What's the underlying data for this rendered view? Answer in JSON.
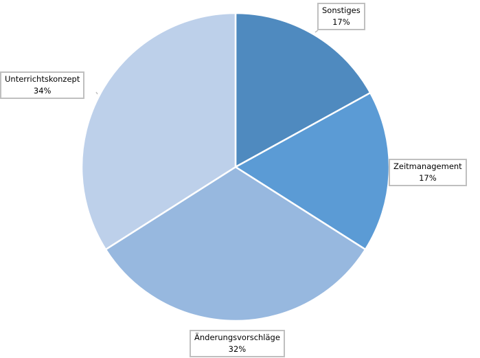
{
  "chart_data": {
    "type": "pie",
    "start": "top",
    "direction": "clockwise",
    "slices": [
      {
        "label": "Sonstiges",
        "value": 17,
        "value_label": "17%",
        "color": "#4f8abf"
      },
      {
        "label": "Zeitmanagement",
        "value": 17,
        "value_label": "17%",
        "color": "#5b9bd5"
      },
      {
        "label": "Änderungsvorschläge",
        "value": 32,
        "value_label": "32%",
        "color": "#97b8df"
      },
      {
        "label": "Unterrichtskonzept",
        "value": 34,
        "value_label": "34%",
        "color": "#bdd0ea"
      }
    ],
    "legend": "none",
    "slice_border_color": "#ffffff",
    "label_border_color": "#bfbfbf"
  }
}
